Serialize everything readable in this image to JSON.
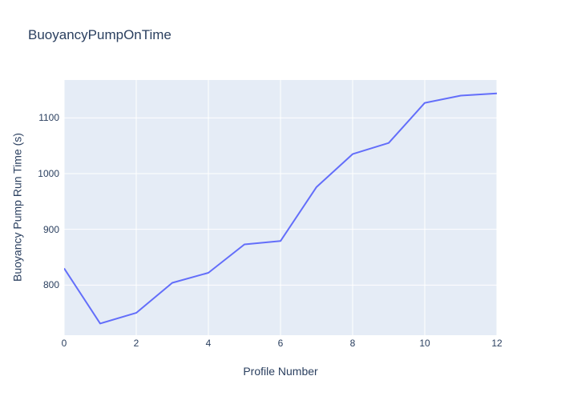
{
  "page": {
    "title": "BuoyancyPumpOnTime"
  },
  "chart_data": {
    "type": "line",
    "title": "BuoyancyPumpOnTime",
    "xlabel": "Profile Number",
    "ylabel": "Buoyancy Pump Run Time (s)",
    "x": [
      0,
      1,
      2,
      3,
      4,
      5,
      6,
      7,
      8,
      9,
      10,
      11,
      12
    ],
    "y": [
      830,
      731,
      750,
      804,
      822,
      873,
      879,
      976,
      1035,
      1055,
      1127,
      1140,
      1144
    ],
    "xlim": [
      0,
      12
    ],
    "ylim": [
      710,
      1168
    ],
    "x_ticks": [
      0,
      2,
      4,
      6,
      8,
      10,
      12
    ],
    "x_tick_labels": [
      "0",
      "2",
      "4",
      "6",
      "8",
      "10",
      "12"
    ],
    "y_ticks": [
      800,
      900,
      1000,
      1100
    ],
    "y_tick_labels": [
      "800",
      "900",
      "1000",
      "1100"
    ],
    "grid": true,
    "legend_visible": false,
    "colors": {
      "line": "#636efa",
      "plot_background": "#e5ecf6",
      "grid": "#ffffff",
      "font": "#2a3f5f",
      "page_background": "#ffffff"
    }
  }
}
